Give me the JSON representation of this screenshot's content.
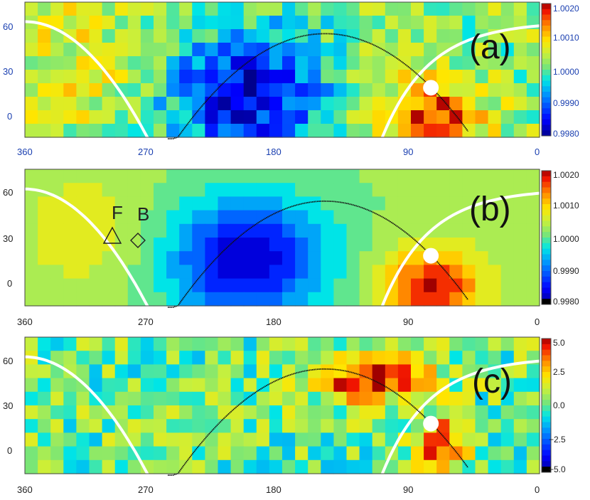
{
  "chart_data": [
    {
      "type": "heatmap",
      "panel_label": "(a)",
      "x_ticks": [
        "360",
        "270",
        "180",
        "90",
        "0"
      ],
      "y_ticks": [
        "60",
        "30",
        "0"
      ],
      "xlim": [
        360,
        0
      ],
      "ylim": [
        -15,
        75
      ],
      "colorbar": {
        "ticks": [
          "1.0020",
          "1.0010",
          "1.0000",
          "0.9990",
          "0.9980"
        ],
        "range": [
          0.998,
          1.002
        ]
      },
      "tick_color": "#1a3fb0",
      "style": "noisy"
    },
    {
      "type": "heatmap",
      "panel_label": "(b)",
      "x_ticks": [
        "360",
        "270",
        "180",
        "90",
        "0"
      ],
      "y_ticks": [
        "60",
        "30",
        "0"
      ],
      "xlim": [
        360,
        0
      ],
      "ylim": [
        -15,
        75
      ],
      "colorbar": {
        "ticks": [
          "1.0020",
          "1.0010",
          "1.0000",
          "0.9990",
          "0.9980"
        ],
        "range": [
          0.998,
          1.002
        ]
      },
      "tick_color": "#222222",
      "style": "smooth",
      "annotations": [
        {
          "text": "F",
          "symbol": "triangle",
          "lon": 300,
          "lat": 30
        },
        {
          "text": "B",
          "symbol": "diamond",
          "lon": 283,
          "lat": 30
        }
      ]
    },
    {
      "type": "heatmap",
      "panel_label": "(c)",
      "x_ticks": [
        "360",
        "270",
        "180",
        "90",
        "0"
      ],
      "y_ticks": [
        "60",
        "30",
        "0"
      ],
      "xlim": [
        360,
        0
      ],
      "ylim": [
        -15,
        75
      ],
      "colorbar": {
        "ticks": [
          "5.0",
          "2.5",
          "0.0",
          "−2.5",
          "−5.0"
        ],
        "range": [
          -5,
          5
        ]
      },
      "tick_color": "#222222",
      "style": "residual"
    }
  ],
  "overlays": {
    "white_curve_color": "#ffffff",
    "black_curve_color": "#111111",
    "black_curve_peak": {
      "lon": 150,
      "lat": 54
    },
    "sun_marker": {
      "lon": 76,
      "lat": 18
    }
  }
}
